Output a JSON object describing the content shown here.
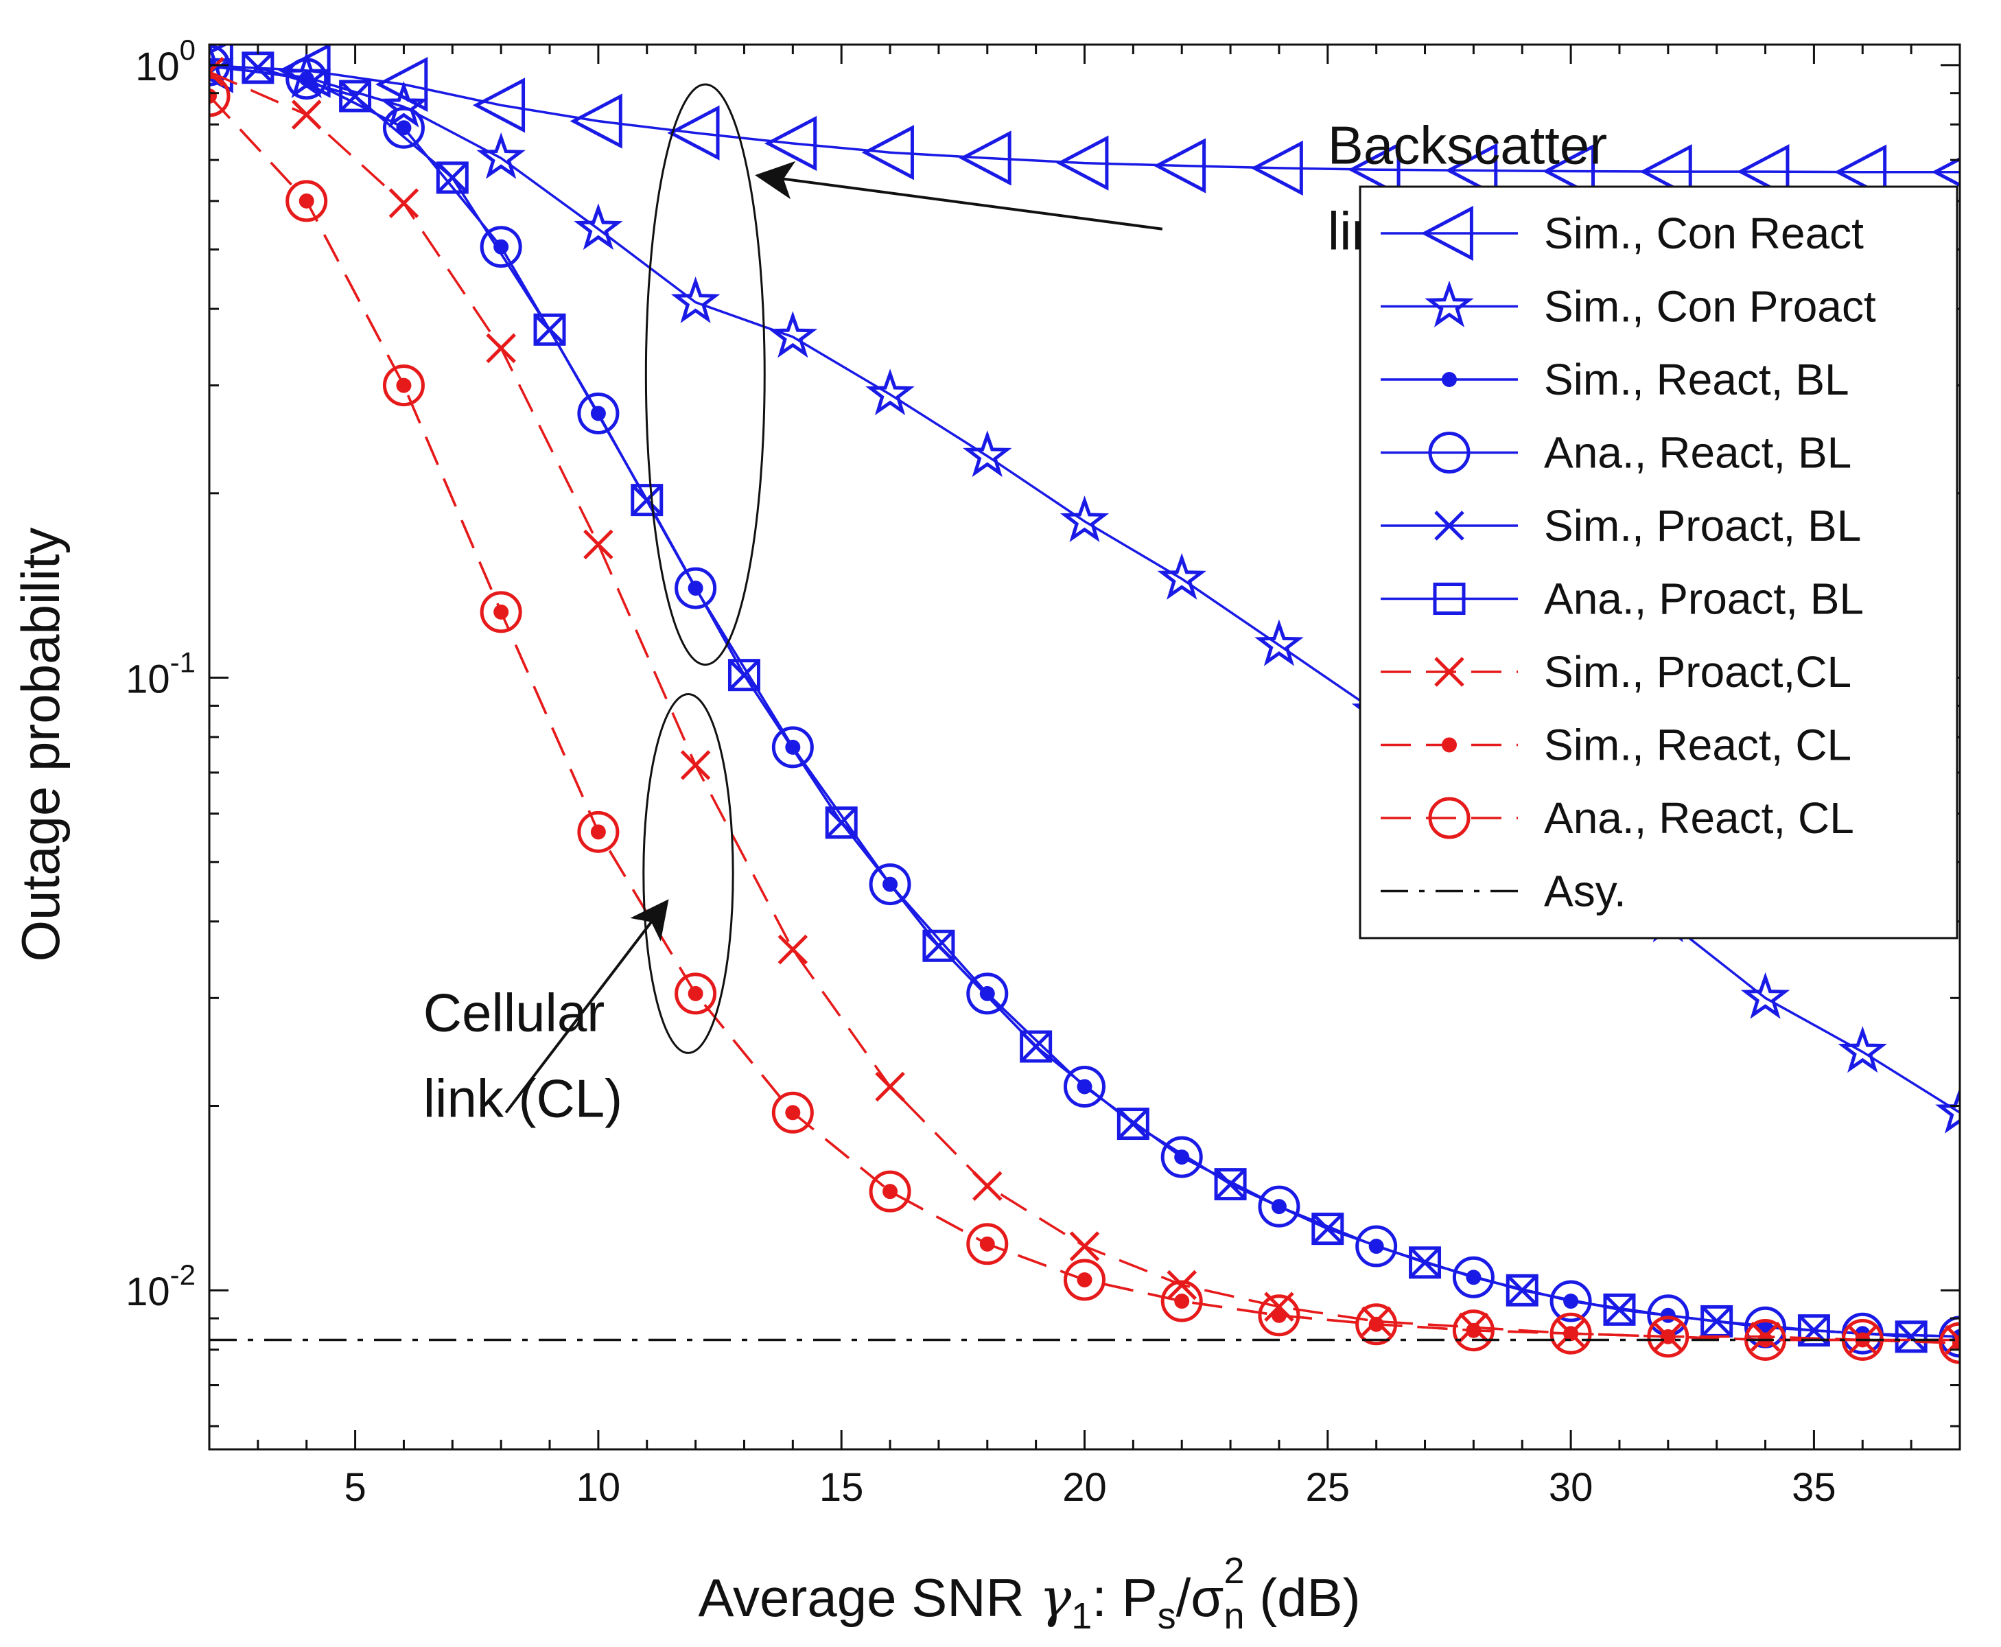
{
  "chart_data": {
    "type": "line",
    "title": "",
    "xlabel": {
      "prefix": "Average SNR ",
      "gamma": "γ",
      "gamma_sub": "1",
      "colon": ": P",
      "p_sub": "s",
      "slash": "/σ",
      "sigma_sub": "n",
      "sigma_sup": "2",
      "suffix": " (dB)"
    },
    "ylabel": "Outage probability",
    "xlim": [
      2,
      38
    ],
    "ylim": [
      0.0055,
      1.08
    ],
    "yscale": "log",
    "grid": false,
    "legend_position": "right",
    "x_ticks": [
      {
        "value": 5,
        "label": "5"
      },
      {
        "value": 10,
        "label": "10"
      },
      {
        "value": 15,
        "label": "15"
      },
      {
        "value": 20,
        "label": "20"
      },
      {
        "value": 25,
        "label": "25"
      },
      {
        "value": 30,
        "label": "30"
      },
      {
        "value": 35,
        "label": "35"
      }
    ],
    "y_ticks": [
      {
        "value": 1,
        "base": "10",
        "exp": "0"
      },
      {
        "value": 0.1,
        "base": "10",
        "exp": "-1"
      },
      {
        "value": 0.01,
        "base": "10",
        "exp": "-2"
      }
    ],
    "colors": {
      "blue": "#1a1ae6",
      "red": "#e61a1a",
      "black": "#111111"
    },
    "series": [
      {
        "name": "Sim., Con React",
        "color": "#1a1ae6",
        "dash": "solid",
        "marker": "triangle-left",
        "x": [
          2,
          4,
          6,
          8,
          10,
          12,
          14,
          16,
          18,
          20,
          22,
          24,
          26,
          28,
          30,
          32,
          34,
          36,
          38
        ],
        "y": [
          0.998,
          0.98,
          0.93,
          0.86,
          0.81,
          0.775,
          0.745,
          0.72,
          0.705,
          0.692,
          0.685,
          0.679,
          0.675,
          0.673,
          0.671,
          0.67,
          0.67,
          0.669,
          0.669
        ]
      },
      {
        "name": "Sim., Con Proact",
        "color": "#1a1ae6",
        "dash": "solid",
        "marker": "star",
        "x": [
          2,
          4,
          6,
          8,
          10,
          12,
          14,
          16,
          18,
          20,
          22,
          24,
          26,
          28,
          30,
          32,
          34,
          36,
          38
        ],
        "y": [
          0.995,
          0.955,
          0.855,
          0.705,
          0.54,
          0.41,
          0.36,
          0.29,
          0.23,
          0.18,
          0.145,
          0.113,
          0.088,
          0.068,
          0.052,
          0.04,
          0.03,
          0.0245,
          0.0195
        ]
      },
      {
        "name": "Sim., React, BL",
        "color": "#1a1ae6",
        "dash": "solid",
        "marker": "dot",
        "x": [
          2,
          4,
          6,
          8,
          10,
          12,
          14,
          16,
          18,
          20,
          22,
          24,
          26,
          28,
          30,
          32,
          34,
          36,
          38
        ],
        "y": [
          0.999,
          0.95,
          0.79,
          0.505,
          0.27,
          0.14,
          0.077,
          0.046,
          0.0305,
          0.0215,
          0.0165,
          0.0137,
          0.0118,
          0.0105,
          0.0096,
          0.0091,
          0.0087,
          0.0085,
          0.0084
        ]
      },
      {
        "name": "Ana., React, BL",
        "color": "#1a1ae6",
        "dash": "solid",
        "marker": "circle",
        "x": [
          2,
          4,
          6,
          8,
          10,
          12,
          14,
          16,
          18,
          20,
          22,
          24,
          26,
          28,
          30,
          32,
          34,
          36,
          38
        ],
        "y": [
          0.999,
          0.95,
          0.79,
          0.505,
          0.27,
          0.14,
          0.077,
          0.046,
          0.0305,
          0.0215,
          0.0165,
          0.0137,
          0.0118,
          0.0105,
          0.0096,
          0.0091,
          0.0087,
          0.0085,
          0.0084
        ]
      },
      {
        "name": "Sim., Proact, BL",
        "color": "#1a1ae6",
        "dash": "solid",
        "marker": "x",
        "x": [
          3,
          5,
          7,
          9,
          11,
          13,
          15,
          17,
          19,
          21,
          23,
          25,
          27,
          29,
          31,
          33,
          35,
          37
        ],
        "y": [
          0.99,
          0.89,
          0.655,
          0.37,
          0.195,
          0.101,
          0.058,
          0.0365,
          0.025,
          0.0187,
          0.0149,
          0.0126,
          0.0111,
          0.01,
          0.0093,
          0.0089,
          0.0086,
          0.0084
        ]
      },
      {
        "name": "Ana., Proact, BL",
        "color": "#1a1ae6",
        "dash": "solid",
        "marker": "square",
        "x": [
          3,
          5,
          7,
          9,
          11,
          13,
          15,
          17,
          19,
          21,
          23,
          25,
          27,
          29,
          31,
          33,
          35,
          37
        ],
        "y": [
          0.99,
          0.89,
          0.655,
          0.37,
          0.195,
          0.101,
          0.058,
          0.0365,
          0.025,
          0.0187,
          0.0149,
          0.0126,
          0.0111,
          0.01,
          0.0093,
          0.0089,
          0.0086,
          0.0084
        ]
      },
      {
        "name": "Sim., Proact,CL",
        "color": "#e61a1a",
        "dash": "dashed",
        "marker": "x",
        "x": [
          2,
          4,
          6,
          8,
          10,
          12,
          14,
          16,
          18,
          20,
          22,
          24,
          26,
          28,
          30,
          32,
          34,
          36,
          38
        ],
        "y": [
          0.975,
          0.83,
          0.595,
          0.345,
          0.165,
          0.072,
          0.036,
          0.0215,
          0.0148,
          0.0118,
          0.0102,
          0.0094,
          0.0089,
          0.0087,
          0.0085,
          0.0084,
          0.0084,
          0.0083,
          0.0083
        ]
      },
      {
        "name": "Sim., React, CL",
        "color": "#e61a1a",
        "dash": "dashed",
        "marker": "dot",
        "x": [
          2,
          4,
          6,
          8,
          10,
          12,
          14,
          16,
          18,
          20,
          22,
          24,
          26,
          28,
          30,
          32,
          34,
          36,
          38
        ],
        "y": [
          0.89,
          0.6,
          0.3,
          0.128,
          0.056,
          0.0305,
          0.0195,
          0.0145,
          0.0119,
          0.0104,
          0.0096,
          0.0091,
          0.0088,
          0.0086,
          0.0085,
          0.0084,
          0.0083,
          0.0083,
          0.0082
        ]
      },
      {
        "name": "Ana., React, CL",
        "color": "#e61a1a",
        "dash": "dashed",
        "marker": "circle",
        "x": [
          2,
          4,
          6,
          8,
          10,
          12,
          14,
          16,
          18,
          20,
          22,
          24,
          26,
          28,
          30,
          32,
          34,
          36,
          38
        ],
        "y": [
          0.89,
          0.6,
          0.3,
          0.128,
          0.056,
          0.0305,
          0.0195,
          0.0145,
          0.0119,
          0.0104,
          0.0096,
          0.0091,
          0.0088,
          0.0086,
          0.0085,
          0.0084,
          0.0083,
          0.0083,
          0.0082
        ]
      },
      {
        "name": "Asy.",
        "color": "#111111",
        "dash": "dashdot",
        "marker": "none",
        "x": [
          2,
          38
        ],
        "y": [
          0.0083,
          0.0083
        ]
      }
    ],
    "annotations": [
      {
        "lines": [
          "Backscatter",
          "link (BL)"
        ],
        "text_x": 25,
        "text_y_top": 0.69,
        "line_factor": 0.735,
        "arrow_from": [
          21.6,
          0.54
        ],
        "arrow_to": [
          13.3,
          0.66
        ]
      },
      {
        "lines": [
          "Cellular",
          "link (CL)"
        ],
        "text_x": 6.4,
        "text_y_top": 0.0265,
        "line_factor": 0.735,
        "arrow_from": [
          8.1,
          0.0195
        ],
        "arrow_to": [
          11.4,
          0.043
        ]
      }
    ],
    "ellipses": [
      {
        "cx": 12.2,
        "y_top": 0.93,
        "y_bottom": 0.105,
        "rx_units": 1.22
      },
      {
        "cx": 11.85,
        "y_top": 0.094,
        "y_bottom": 0.0244,
        "rx_units": 0.92
      }
    ]
  }
}
